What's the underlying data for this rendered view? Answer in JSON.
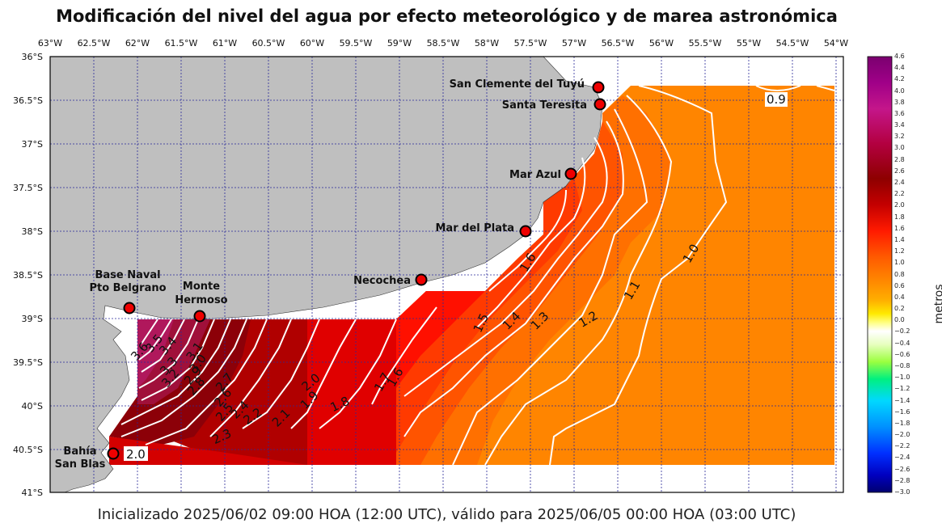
{
  "title": "Modificación del nivel del agua por efecto meteorológico y de marea astronómica",
  "subtitle": "Inicializado 2025/06/02 09:00 HOA (12:00 UTC), válido para 2025/06/05 00:00 HOA (03:00 UTC)",
  "lon_labels": [
    "63°W",
    "62.5°W",
    "62°W",
    "61.5°W",
    "61°W",
    "60.5°W",
    "60°W",
    "59.5°W",
    "59°W",
    "58.5°W",
    "58°W",
    "57.5°W",
    "57°W",
    "56.5°W",
    "56°W",
    "55.5°W",
    "55°W",
    "54.5°W",
    "54°W"
  ],
  "lat_labels": [
    "36°S",
    "36.5°S",
    "37°S",
    "37.5°S",
    "38°S",
    "38.5°S",
    "39°S",
    "39.5°S",
    "40°S",
    "40.5°S",
    "41°S"
  ],
  "stations": [
    {
      "name": "San Clemente del Tuyú",
      "lon": -56.72,
      "lat": -36.35
    },
    {
      "name": "Santa Teresita",
      "lon": -56.7,
      "lat": -36.55
    },
    {
      "name": "Mar Azul",
      "lon": -57.03,
      "lat": -37.35
    },
    {
      "name": "Mar del Plata",
      "lon": -57.55,
      "lat": -38.01
    },
    {
      "name": "Necochea",
      "lon": -58.73,
      "lat": -38.57
    },
    {
      "name": "Base Naval Pto Belgrano",
      "lon": -62.09,
      "lat": -38.89
    },
    {
      "name": "Monte Hermoso",
      "lon": -61.28,
      "lat": -38.99
    },
    {
      "name": "Bahía San Blas",
      "lon": -62.28,
      "lat": -40.56
    }
  ],
  "contour_labels": [
    "0.9",
    "1.0",
    "1.1",
    "1.2",
    "1.3",
    "1.4",
    "1.5",
    "1.6",
    "1.6",
    "1.7",
    "1.8",
    "1.9",
    "2.0",
    "2.1",
    "2.2",
    "2.3",
    "2.4",
    "2.5",
    "2.6",
    "2.7",
    "2.8",
    "2.9",
    "3.0",
    "3.1",
    "3.2",
    "3.3",
    "3.4",
    "3.5",
    "3.6",
    "2.0"
  ],
  "colorbar": {
    "unit": "metros",
    "ticks": [
      "4.6",
      "4.4",
      "4.2",
      "4.0",
      "3.8",
      "3.6",
      "3.4",
      "3.2",
      "3.0",
      "2.8",
      "2.6",
      "2.4",
      "2.2",
      "2.0",
      "1.8",
      "1.6",
      "1.4",
      "1.2",
      "1.0",
      "0.8",
      "0.6",
      "0.4",
      "0.2",
      "0.0",
      "−0.2",
      "−0.4",
      "−0.6",
      "−0.8",
      "−1.0",
      "−1.2",
      "−1.4",
      "−1.6",
      "−1.8",
      "−2.0",
      "−2.2",
      "−2.4",
      "−2.6",
      "−2.8",
      "−3.0"
    ]
  }
}
